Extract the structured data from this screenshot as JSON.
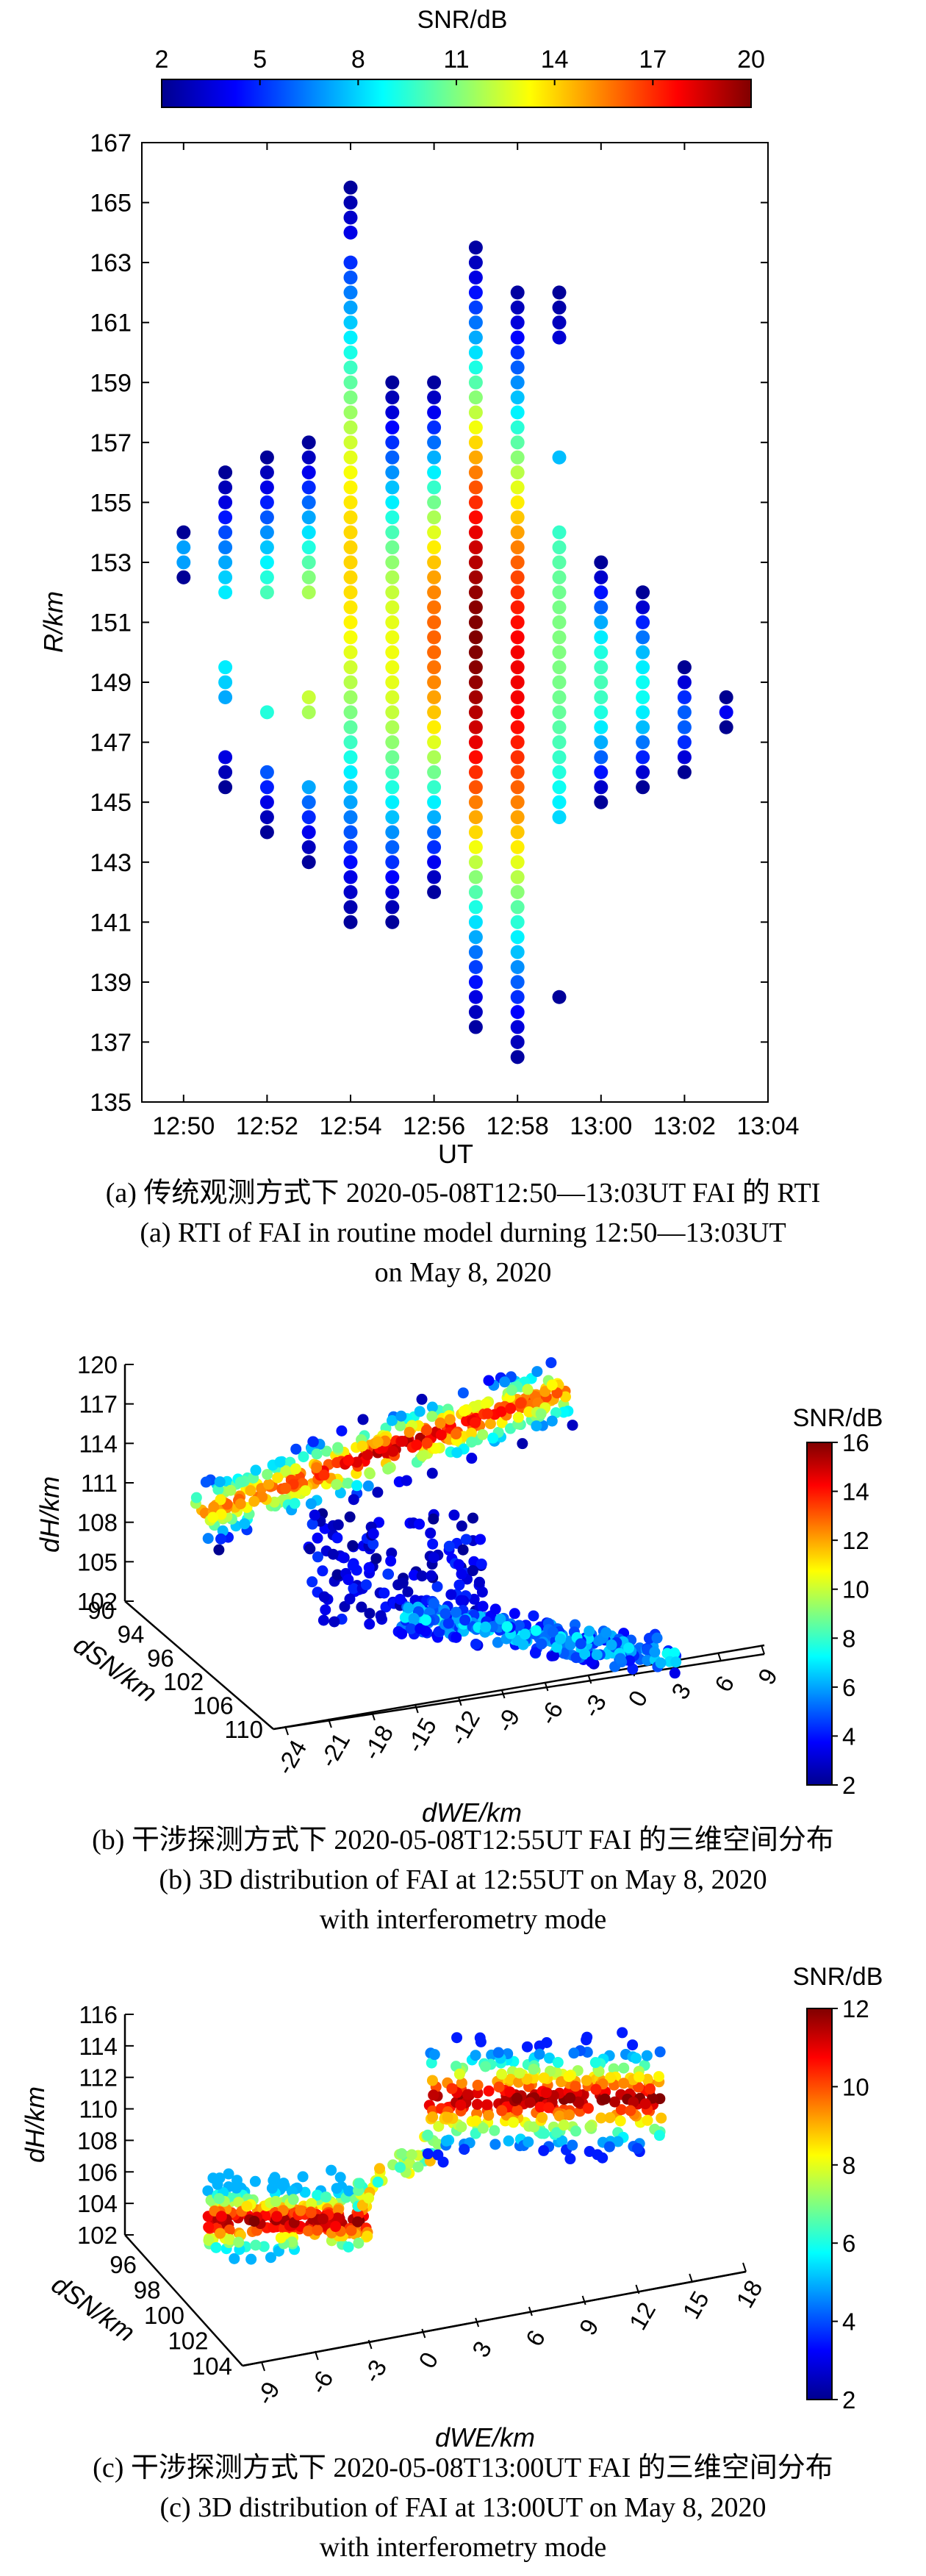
{
  "colors": {
    "jet": [
      "#00008f",
      "#0000ff",
      "#0080ff",
      "#00ffff",
      "#80ff80",
      "#ffff00",
      "#ff8000",
      "#ff0000",
      "#800000"
    ],
    "marker": "#00008f"
  },
  "panel_a": {
    "caption_cn": "(a) 传统观测方式下 2020-05-08T12:50—13:03UT FAI 的 RTI",
    "caption_en1": "(a) RTI of FAI in routine model durning 12:50—13:03UT",
    "caption_en2": "on May 8, 2020"
  },
  "panel_b": {
    "caption_cn": "(b) 干涉探测方式下 2020-05-08T12:55UT FAI 的三维空间分布",
    "caption_en1": "(b) 3D distribution of FAI at 12:55UT on May 8, 2020",
    "caption_en2": "with interferometry mode"
  },
  "panel_c": {
    "caption_cn": "(c) 干涉探测方式下 2020-05-08T13:00UT FAI 的三维空间分布",
    "caption_en1": "(c) 3D distribution of FAI at 13:00UT on May 8, 2020",
    "caption_en2": "with interferometry mode"
  },
  "chart_data": [
    {
      "type": "scatter",
      "title": "",
      "xlabel": "UT",
      "ylabel": "R/km",
      "x_ticks": [
        "12:50",
        "12:52",
        "12:54",
        "12:56",
        "12:58",
        "13:00",
        "13:02",
        "13:04"
      ],
      "y_ticks": [
        "135",
        "137",
        "139",
        "141",
        "143",
        "145",
        "147",
        "149",
        "151",
        "153",
        "155",
        "157",
        "159",
        "161",
        "163",
        "165",
        "167"
      ],
      "ylim": [
        135,
        167
      ],
      "xlim": [
        "12:49",
        "13:04"
      ],
      "colorbar": {
        "label": "SNR/dB",
        "ticks": [
          "2",
          "5",
          "8",
          "11",
          "14",
          "17",
          "20"
        ],
        "range": [
          2,
          20
        ],
        "placement": "top"
      },
      "columns": [
        {
          "ut": "12:50",
          "ranges": [
            [
              152.5,
              154
            ]
          ],
          "snr_peak": 8
        },
        {
          "ut": "12:51",
          "ranges": [
            [
              145.5,
              146.5
            ],
            [
              148.5,
              149.5
            ],
            [
              152,
              156
            ]
          ],
          "snr_peak": 9
        },
        {
          "ut": "12:52",
          "ranges": [
            [
              144,
              146
            ],
            [
              148,
              148
            ],
            [
              152,
              156.5
            ]
          ],
          "snr_peak": 11
        },
        {
          "ut": "12:53",
          "ranges": [
            [
              143,
              145.5
            ],
            [
              148,
              148.5
            ],
            [
              152,
              157
            ]
          ],
          "snr_peak": 13
        },
        {
          "ut": "12:54",
          "ranges": [
            [
              141,
              163
            ],
            [
              164,
              165.5
            ]
          ],
          "snr_peak": 14
        },
        {
          "ut": "12:55",
          "ranges": [
            [
              141,
              159
            ]
          ],
          "snr_peak": 13
        },
        {
          "ut": "12:56",
          "ranges": [
            [
              142,
              159
            ]
          ],
          "snr_peak": 16
        },
        {
          "ut": "12:57",
          "ranges": [
            [
              137.5,
              163.5
            ]
          ],
          "snr_peak": 20
        },
        {
          "ut": "12:58",
          "ranges": [
            [
              136.5,
              162
            ]
          ],
          "snr_peak": 18
        },
        {
          "ut": "12:59",
          "ranges": [
            [
              138.5,
              138.5
            ],
            [
              144.5,
              154
            ],
            [
              156.5,
              156.5
            ],
            [
              160.5,
              162
            ]
          ],
          "snr_peak": 11
        },
        {
          "ut": "13:00",
          "ranges": [
            [
              145,
              153
            ]
          ],
          "snr_peak": 10
        },
        {
          "ut": "13:01",
          "ranges": [
            [
              145.5,
              152
            ]
          ],
          "snr_peak": 9
        },
        {
          "ut": "13:02",
          "ranges": [
            [
              146,
              149.5
            ]
          ],
          "snr_peak": 6
        },
        {
          "ut": "13:03",
          "ranges": [
            [
              147.5,
              148.5
            ]
          ],
          "snr_peak": 4
        }
      ]
    },
    {
      "type": "scatter",
      "title": "",
      "xlabel": "d_WE/km",
      "ylabel": "d_H/km",
      "zlabel": "d_SN/km",
      "x_ticks": [
        "-24",
        "-21",
        "-18",
        "-15",
        "-12",
        "-9",
        "-6",
        "-3",
        "0",
        "3",
        "6",
        "9"
      ],
      "y_ticks": [
        "90",
        "94",
        "96",
        "102",
        "106",
        "110"
      ],
      "z_ticks": [
        "102",
        "105",
        "108",
        "111",
        "114",
        "117",
        "120"
      ],
      "colorbar": {
        "label": "SNR/dB",
        "ticks": [
          "2",
          "4",
          "6",
          "8",
          "10",
          "12",
          "14",
          "16"
        ],
        "range": [
          2,
          16
        ],
        "placement": "right"
      },
      "clusters": [
        {
          "we_range": [
            -24,
            0
          ],
          "h_center": 112,
          "snr_peak": 16,
          "count": 380
        },
        {
          "we_range": [
            -14,
            4
          ],
          "h_center": 104,
          "snr_peak": 8,
          "count": 260
        }
      ]
    },
    {
      "type": "scatter",
      "title": "",
      "xlabel": "d_WE/km",
      "ylabel": "d_H/km",
      "zlabel": "d_SN/km",
      "x_ticks": [
        "-9",
        "-6",
        "-3",
        "0",
        "3",
        "6",
        "9",
        "12",
        "15",
        "18"
      ],
      "y_ticks": [
        "96",
        "98",
        "100",
        "102",
        "104"
      ],
      "z_ticks": [
        "102",
        "104",
        "106",
        "108",
        "110",
        "112",
        "114",
        "116"
      ],
      "colorbar": {
        "label": "SNR/dB",
        "ticks": [
          "2",
          "4",
          "6",
          "8",
          "10",
          "12"
        ],
        "range": [
          2,
          12
        ],
        "placement": "right"
      },
      "clusters": [
        {
          "we_range": [
            -10,
            -2
          ],
          "h_center": 103,
          "snr_peak": 12,
          "count": 260
        },
        {
          "we_range": [
            0,
            16
          ],
          "h_center": 110,
          "snr_peak": 12,
          "count": 320
        }
      ]
    }
  ]
}
